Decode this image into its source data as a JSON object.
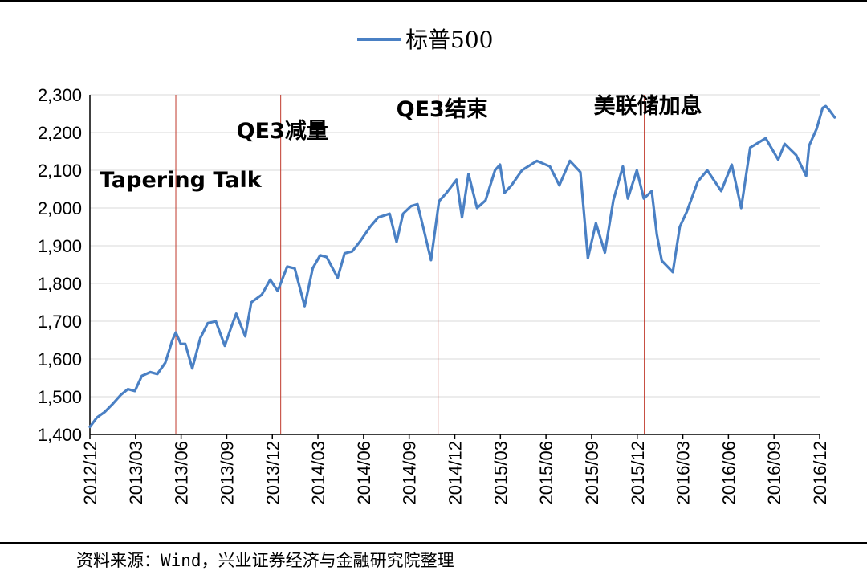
{
  "chart_data": {
    "type": "line",
    "legend": "标普500",
    "legend_placement": "top-center",
    "x_tick_labels": [
      "2012/12",
      "2013/03",
      "2013/06",
      "2013/09",
      "2013/12",
      "2014/03",
      "2014/06",
      "2014/09",
      "2014/12",
      "2015/03",
      "2015/06",
      "2015/09",
      "2015/12",
      "2016/03",
      "2016/06",
      "2016/09",
      "2016/12"
    ],
    "y_tick_labels": [
      "2,300",
      "2,200",
      "2,100",
      "2,000",
      "1,900",
      "1,800",
      "1,700",
      "1,600",
      "1,500",
      "1,400"
    ],
    "xlim": [
      "2012-12-01",
      "2016-12-01"
    ],
    "ylim": [
      1400,
      2300
    ],
    "grid": "horizontal",
    "line_color": "#4a80c4",
    "event_line_color": "#c0392b",
    "series": [
      {
        "name": "标普500",
        "points": [
          [
            "2012-12-01",
            1420
          ],
          [
            "2012-12-15",
            1445
          ],
          [
            "2012-12-31",
            1460
          ],
          [
            "2013-01-15",
            1480
          ],
          [
            "2013-02-01",
            1505
          ],
          [
            "2013-02-15",
            1520
          ],
          [
            "2013-03-01",
            1515
          ],
          [
            "2013-03-15",
            1555
          ],
          [
            "2013-04-01",
            1565
          ],
          [
            "2013-04-15",
            1560
          ],
          [
            "2013-05-01",
            1590
          ],
          [
            "2013-05-15",
            1650
          ],
          [
            "2013-05-22",
            1670
          ],
          [
            "2013-06-01",
            1640
          ],
          [
            "2013-06-10",
            1640
          ],
          [
            "2013-06-24",
            1575
          ],
          [
            "2013-07-10",
            1655
          ],
          [
            "2013-07-25",
            1695
          ],
          [
            "2013-08-10",
            1700
          ],
          [
            "2013-08-28",
            1635
          ],
          [
            "2013-09-10",
            1685
          ],
          [
            "2013-09-20",
            1720
          ],
          [
            "2013-10-08",
            1660
          ],
          [
            "2013-10-20",
            1750
          ],
          [
            "2013-11-10",
            1770
          ],
          [
            "2013-11-27",
            1810
          ],
          [
            "2013-12-12",
            1780
          ],
          [
            "2013-12-31",
            1845
          ],
          [
            "2014-01-15",
            1840
          ],
          [
            "2014-02-04",
            1740
          ],
          [
            "2014-02-20",
            1840
          ],
          [
            "2014-03-07",
            1875
          ],
          [
            "2014-03-20",
            1870
          ],
          [
            "2014-04-11",
            1815
          ],
          [
            "2014-04-25",
            1880
          ],
          [
            "2014-05-10",
            1885
          ],
          [
            "2014-05-25",
            1910
          ],
          [
            "2014-06-15",
            1950
          ],
          [
            "2014-07-01",
            1975
          ],
          [
            "2014-07-24",
            1985
          ],
          [
            "2014-08-07",
            1910
          ],
          [
            "2014-08-20",
            1985
          ],
          [
            "2014-09-05",
            2005
          ],
          [
            "2014-09-18",
            2010
          ],
          [
            "2014-10-01",
            1940
          ],
          [
            "2014-10-15",
            1862
          ],
          [
            "2014-10-31",
            2018
          ],
          [
            "2014-11-15",
            2040
          ],
          [
            "2014-12-05",
            2075
          ],
          [
            "2014-12-16",
            1975
          ],
          [
            "2014-12-29",
            2090
          ],
          [
            "2015-01-15",
            2000
          ],
          [
            "2015-02-01",
            2020
          ],
          [
            "2015-02-20",
            2100
          ],
          [
            "2015-03-02",
            2115
          ],
          [
            "2015-03-11",
            2040
          ],
          [
            "2015-03-25",
            2060
          ],
          [
            "2015-04-15",
            2100
          ],
          [
            "2015-05-15",
            2125
          ],
          [
            "2015-06-10",
            2110
          ],
          [
            "2015-06-29",
            2060
          ],
          [
            "2015-07-20",
            2125
          ],
          [
            "2015-08-10",
            2095
          ],
          [
            "2015-08-25",
            1867
          ],
          [
            "2015-09-10",
            1960
          ],
          [
            "2015-09-28",
            1882
          ],
          [
            "2015-10-15",
            2020
          ],
          [
            "2015-11-03",
            2110
          ],
          [
            "2015-11-13",
            2025
          ],
          [
            "2015-12-01",
            2100
          ],
          [
            "2015-12-15",
            2025
          ],
          [
            "2015-12-31",
            2045
          ],
          [
            "2016-01-10",
            1930
          ],
          [
            "2016-01-20",
            1860
          ],
          [
            "2016-02-11",
            1830
          ],
          [
            "2016-02-25",
            1950
          ],
          [
            "2016-03-10",
            1990
          ],
          [
            "2016-04-01",
            2070
          ],
          [
            "2016-04-20",
            2100
          ],
          [
            "2016-05-18",
            2045
          ],
          [
            "2016-06-08",
            2115
          ],
          [
            "2016-06-27",
            2000
          ],
          [
            "2016-07-15",
            2160
          ],
          [
            "2016-08-15",
            2185
          ],
          [
            "2016-09-09",
            2128
          ],
          [
            "2016-09-22",
            2170
          ],
          [
            "2016-10-15",
            2140
          ],
          [
            "2016-11-04",
            2085
          ],
          [
            "2016-11-10",
            2165
          ],
          [
            "2016-11-25",
            2210
          ],
          [
            "2016-12-07",
            2265
          ],
          [
            "2016-12-13",
            2270
          ],
          [
            "2016-12-20",
            2260
          ],
          [
            "2016-12-31",
            2240
          ]
        ]
      }
    ],
    "events": [
      {
        "date": "2013-05-22",
        "label": "Tapering Talk"
      },
      {
        "date": "2013-12-18",
        "label": "QE3减量"
      },
      {
        "date": "2014-10-29",
        "label": "QE3结束"
      },
      {
        "date": "2015-12-16",
        "label": "美联储加息"
      }
    ]
  },
  "source": "资料来源：Wind，兴业证券经济与金融研究院整理"
}
